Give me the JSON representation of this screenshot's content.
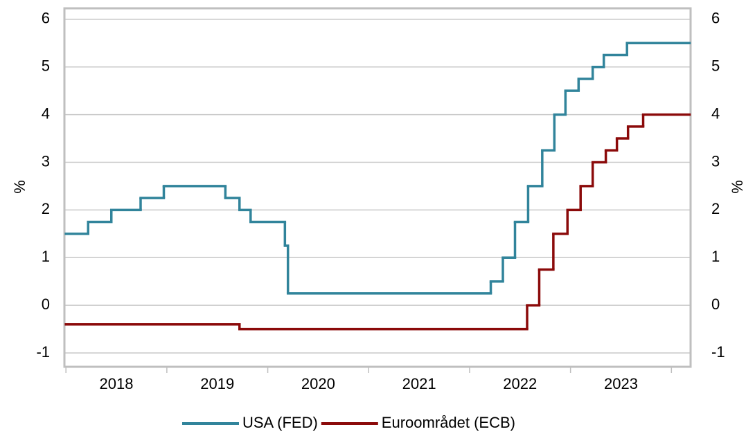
{
  "chart_data": {
    "type": "step",
    "y_label": "%",
    "y2_label": "%",
    "xlim": [
      2017.985,
      2024.19
    ],
    "xticks": [
      {
        "value": 2018.5,
        "label": "2018"
      },
      {
        "value": 2019.5,
        "label": "2019"
      },
      {
        "value": 2020.5,
        "label": "2020"
      },
      {
        "value": 2021.5,
        "label": "2021"
      },
      {
        "value": 2022.5,
        "label": "2022"
      },
      {
        "value": 2023.5,
        "label": "2023"
      }
    ],
    "xtick_marks": [
      2018,
      2019,
      2020,
      2021,
      2022,
      2023,
      2024
    ],
    "ylim": [
      -1.29,
      6.23
    ],
    "yticks": [
      -1,
      0,
      1,
      2,
      3,
      4,
      5,
      6
    ],
    "y2lim": [
      -1.29,
      6.23
    ],
    "y2ticks": [
      -1,
      0,
      1,
      2,
      3,
      4,
      5,
      6
    ],
    "grid": true,
    "legend": "bottom",
    "series": [
      {
        "name": "USA (FED)",
        "color": "#31849b",
        "x": [
          2018.0,
          2018.22,
          2018.45,
          2018.74,
          2018.97,
          2019.58,
          2019.72,
          2019.83,
          2020.17,
          2020.2,
          2022.21,
          2022.33,
          2022.45,
          2022.58,
          2022.72,
          2022.84,
          2022.95,
          2023.08,
          2023.22,
          2023.33,
          2023.56
        ],
        "values": [
          1.5,
          1.75,
          2.0,
          2.25,
          2.5,
          2.25,
          2.0,
          1.75,
          1.25,
          0.25,
          0.5,
          1.0,
          1.75,
          2.5,
          3.25,
          4.0,
          4.5,
          4.75,
          5.0,
          5.25,
          5.5
        ]
      },
      {
        "name": "Euroområdet (ECB)",
        "color": "#8b0a0a",
        "x": [
          2018.0,
          2019.72,
          2022.57,
          2022.69,
          2022.83,
          2022.97,
          2023.1,
          2023.22,
          2023.35,
          2023.46,
          2023.57,
          2023.72
        ],
        "values": [
          -0.4,
          -0.5,
          0.0,
          0.75,
          1.5,
          2.0,
          2.5,
          3.0,
          3.25,
          3.5,
          3.75,
          4.0
        ]
      }
    ]
  }
}
